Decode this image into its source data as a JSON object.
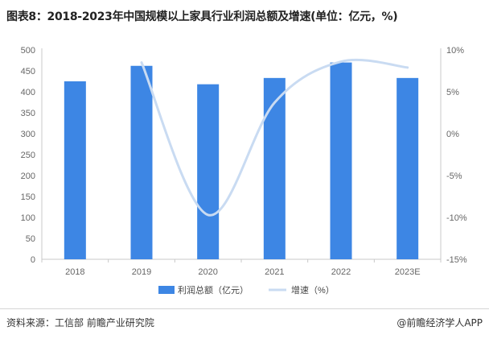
{
  "title": "图表8：2018-2023年中国规模以上家具行业利润总额及增速(单位：亿元，%)",
  "source": "资料来源：工信部 前瞻产业研究院",
  "brand": "@前瞻经济学人APP",
  "colors": {
    "bar": "#3d86e4",
    "line": "#c9dbf2",
    "axis_text": "#666666"
  },
  "chart_data": {
    "type": "bar",
    "categories": [
      "2018",
      "2019",
      "2020",
      "2021",
      "2022",
      "2023E"
    ],
    "series": [
      {
        "name": "利润总额（亿元）",
        "type": "bar",
        "axis": "left",
        "values": [
          425,
          462,
          418,
          433,
          470,
          433
        ]
      },
      {
        "name": "增速（%）",
        "type": "line",
        "axis": "right",
        "values": [
          null,
          8.5,
          -9.7,
          3.7,
          8.6,
          7.9
        ]
      }
    ],
    "y_left": {
      "lim": [
        0,
        500
      ],
      "ticks": [
        "0",
        "50",
        "100",
        "150",
        "200",
        "250",
        "300",
        "350",
        "400",
        "450",
        "500"
      ]
    },
    "y_right": {
      "lim": [
        -15,
        10
      ],
      "ticks": [
        "-15%",
        "-10%",
        "-5%",
        "0%",
        "5%",
        "10%"
      ]
    },
    "grid": false,
    "legend_position": "bottom-center"
  }
}
